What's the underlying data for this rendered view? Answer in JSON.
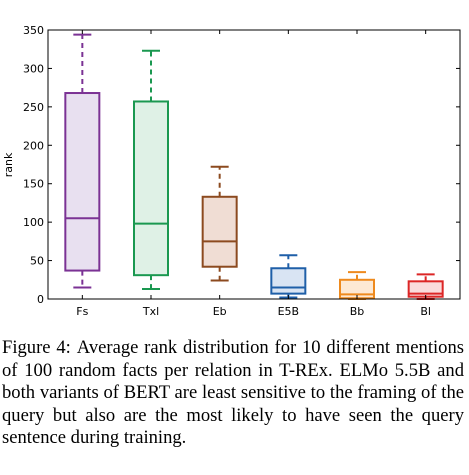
{
  "chart_data": {
    "type": "box",
    "ylabel": "rank",
    "ylim": [
      0,
      350
    ],
    "yticks": [
      "0",
      "50",
      "100",
      "150",
      "200",
      "250",
      "300",
      "350"
    ],
    "categories": [
      "Fs",
      "Txl",
      "Eb",
      "E5B",
      "Bb",
      "Bl"
    ],
    "boxes": [
      {
        "label": "Fs",
        "whisker_low": 15,
        "q1": 37,
        "median": 105,
        "q3": 268,
        "whisker_high": 344,
        "color": "#7b3294",
        "fill": "#e8e0f0"
      },
      {
        "label": "Txl",
        "whisker_low": 13,
        "q1": 31,
        "median": 98,
        "q3": 257,
        "whisker_high": 323,
        "color": "#1a9850",
        "fill": "#dff1e6"
      },
      {
        "label": "Eb",
        "whisker_low": 24,
        "q1": 42,
        "median": 75,
        "q3": 133,
        "whisker_high": 172,
        "color": "#8c4a1f",
        "fill": "#f0ddd4"
      },
      {
        "label": "E5B",
        "whisker_low": 2,
        "q1": 7,
        "median": 15,
        "q3": 40,
        "whisker_high": 57,
        "color": "#1f5fa8",
        "fill": "#d9e4f3"
      },
      {
        "label": "Bb",
        "whisker_low": 0,
        "q1": 1,
        "median": 6,
        "q3": 25,
        "whisker_high": 35,
        "color": "#ee8a1e",
        "fill": "#fde9d4"
      },
      {
        "label": "Bl",
        "whisker_low": 0,
        "q1": 3,
        "median": 7,
        "q3": 23,
        "whisker_high": 32,
        "color": "#dc2626",
        "fill": "#fadcdc"
      }
    ]
  },
  "caption": {
    "prefix": "Figure 4:",
    "text": "Average rank distribution for 10 different mentions of 100 random facts per relation in T-REx. ELMo 5.5B and both variants of BERT are least sensitive to the framing of the query but also are the most likely to have seen the query sentence during training."
  }
}
